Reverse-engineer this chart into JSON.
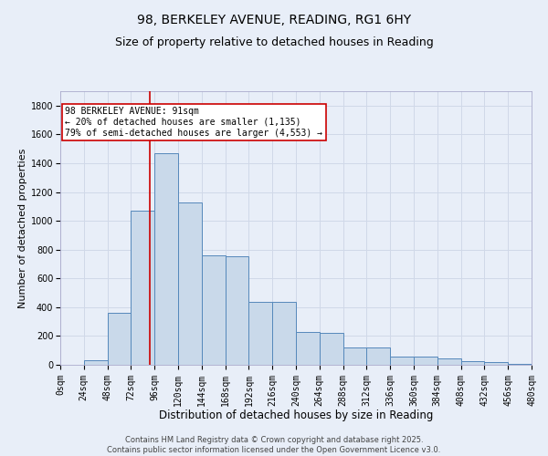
{
  "title1": "98, BERKELEY AVENUE, READING, RG1 6HY",
  "title2": "Size of property relative to detached houses in Reading",
  "xlabel": "Distribution of detached houses by size in Reading",
  "ylabel": "Number of detached properties",
  "bar_color": "#c9d9ea",
  "bar_edge_color": "#5588bb",
  "bar_edge_width": 0.7,
  "grid_color": "#d0d8e8",
  "background_color": "#e8eef8",
  "bin_edges": [
    0,
    24,
    48,
    72,
    96,
    120,
    144,
    168,
    192,
    216,
    240,
    264,
    288,
    312,
    336,
    360,
    384,
    408,
    432,
    456,
    480
  ],
  "bar_heights": [
    0,
    30,
    360,
    1070,
    1470,
    1130,
    760,
    755,
    440,
    435,
    225,
    220,
    120,
    118,
    60,
    55,
    45,
    25,
    20,
    5
  ],
  "property_size": 91,
  "red_line_color": "#cc0000",
  "annotation_line1": "98 BERKELEY AVENUE: 91sqm",
  "annotation_line2": "← 20% of detached houses are smaller (1,135)",
  "annotation_line3": "79% of semi-detached houses are larger (4,553) →",
  "annotation_box_color": "#ffffff",
  "annotation_box_edge_color": "#cc0000",
  "ylim": [
    0,
    1900
  ],
  "yticks": [
    0,
    200,
    400,
    600,
    800,
    1000,
    1200,
    1400,
    1600,
    1800
  ],
  "footnote": "Contains HM Land Registry data © Crown copyright and database right 2025.\nContains public sector information licensed under the Open Government Licence v3.0.",
  "title1_fontsize": 10,
  "title2_fontsize": 9,
  "xlabel_fontsize": 8.5,
  "ylabel_fontsize": 8,
  "tick_fontsize": 7,
  "annotation_fontsize": 7,
  "footnote_fontsize": 6
}
